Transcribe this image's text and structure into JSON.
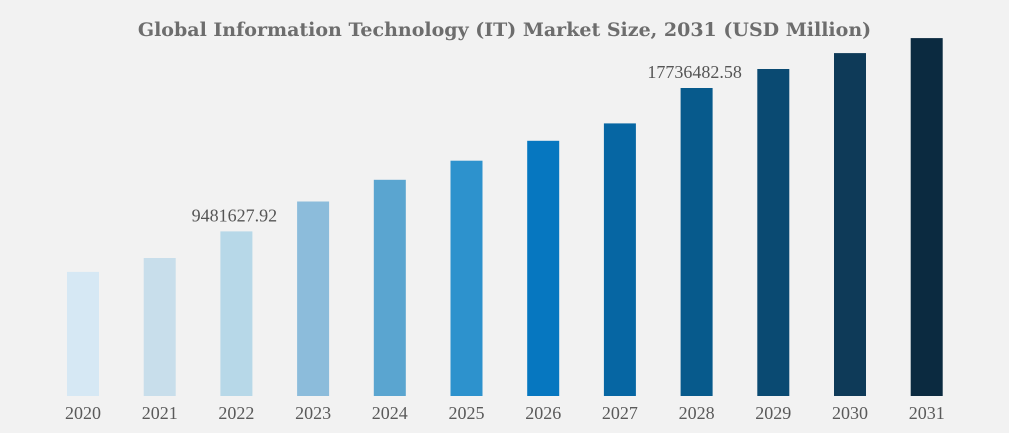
{
  "chart_data": {
    "type": "bar",
    "title": "Global Information Technology (IT) Market Size, 2031 (USD Million)",
    "xlabel": "",
    "ylabel": "",
    "categories": [
      "2020",
      "2021",
      "2022",
      "2023",
      "2024",
      "2025",
      "2026",
      "2027",
      "2028",
      "2029",
      "2030",
      "2031"
    ],
    "values": [
      7150000,
      7950000,
      9481627.92,
      11200000,
      12450000,
      13550000,
      14700000,
      15700000,
      17736482.58,
      18830000,
      19750000,
      20610000
    ],
    "data_labels": [
      {
        "index": 2,
        "text": "9481627.92"
      },
      {
        "index": 8,
        "text": "17736482.58"
      }
    ],
    "ylim": [
      0,
      22000000
    ],
    "grid": false,
    "legend": "none",
    "colors": [
      "#d6e8f4",
      "#c8deeb",
      "#b7d8e8",
      "#8cbcdb",
      "#5aa5d0",
      "#2d92cd",
      "#0677c0",
      "#0666a3",
      "#075a8c",
      "#0a4a72",
      "#0e3a58",
      "#0b2a40"
    ]
  }
}
